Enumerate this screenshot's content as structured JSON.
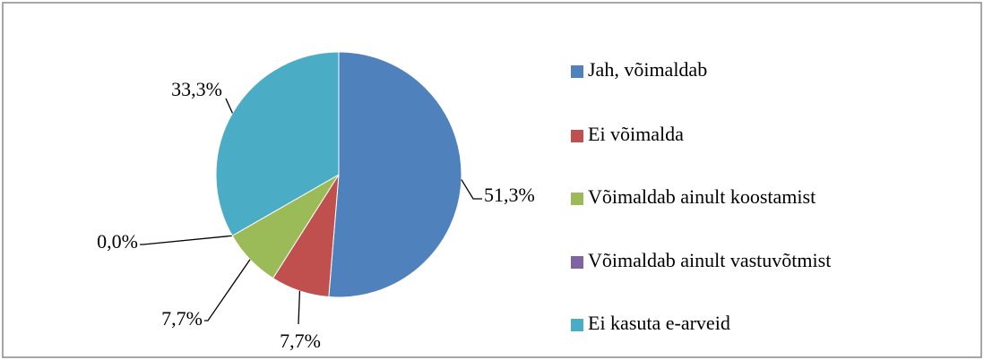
{
  "chart_data": {
    "type": "pie",
    "categories": [
      "Jah, võimaldab",
      "Ei võimalda",
      "Võimaldab ainult koostamist",
      "Võimaldab ainult vastuvõtmist",
      "Ei kasuta e-arveid"
    ],
    "values": [
      51.3,
      7.7,
      7.7,
      0.0,
      33.3
    ],
    "value_labels": [
      "51,3%",
      "7,7%",
      "7,7%",
      "0,0%",
      "33,3%"
    ],
    "colors": [
      "#4f81bd",
      "#c0504d",
      "#9bbb59",
      "#8064a2",
      "#4bacc6"
    ],
    "legend": "right"
  }
}
